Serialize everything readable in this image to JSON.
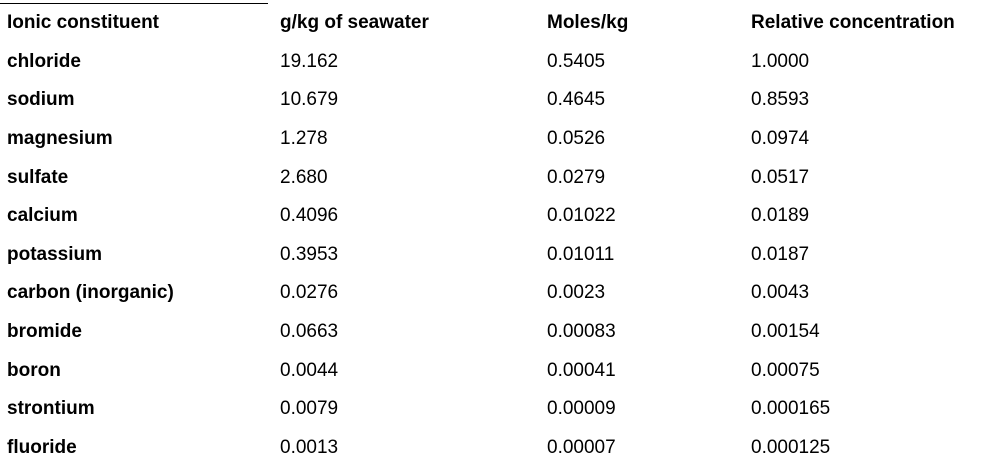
{
  "table": {
    "headers": [
      "Ionic constituent",
      "g/kg of seawater",
      "Moles/kg",
      "Relative concentration"
    ],
    "rows": [
      [
        "chloride",
        "19.162",
        "0.5405",
        "1.0000"
      ],
      [
        "sodium",
        "10.679",
        "0.4645",
        "0.8593"
      ],
      [
        "magnesium",
        "1.278",
        "0.0526",
        "0.0974"
      ],
      [
        "sulfate",
        "2.680",
        "0.0279",
        "0.0517"
      ],
      [
        "calcium",
        "0.4096",
        "0.01022",
        "0.0189"
      ],
      [
        "potassium",
        "0.3953",
        "0.01011",
        "0.0187"
      ],
      [
        "carbon (inorganic)",
        "0.0276",
        "0.0023",
        "0.0043"
      ],
      [
        "bromide",
        "0.0663",
        "0.00083",
        "0.00154"
      ],
      [
        "boron",
        "0.0044",
        "0.00041",
        "0.00075"
      ],
      [
        "strontium",
        "0.0079",
        "0.00009",
        "0.000165"
      ],
      [
        "fluoride",
        "0.0013",
        "0.00007",
        "0.000125"
      ]
    ]
  }
}
